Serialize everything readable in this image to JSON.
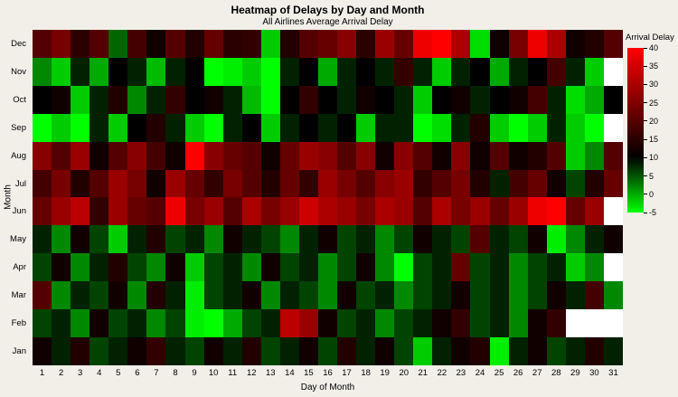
{
  "chart_data": {
    "type": "heatmap",
    "title": "Heatmap of Delays by Day and Month",
    "subtitle": "All Airlines Average Arrival Delay",
    "xlabel": "Day of Month",
    "ylabel": "Month",
    "x": [
      1,
      2,
      3,
      4,
      5,
      6,
      7,
      8,
      9,
      10,
      11,
      12,
      13,
      14,
      15,
      16,
      17,
      18,
      19,
      20,
      21,
      22,
      23,
      24,
      25,
      26,
      27,
      28,
      29,
      30,
      31
    ],
    "y": [
      "Dec",
      "Nov",
      "Oct",
      "Sep",
      "Aug",
      "Jul",
      "Jun",
      "May",
      "Apr",
      "Mar",
      "Feb",
      "Jan"
    ],
    "legend": {
      "title": "Arrival Delay",
      "ticks": [
        40,
        35,
        30,
        25,
        20,
        15,
        10,
        5,
        0,
        -5
      ],
      "min": -5,
      "max": 40,
      "midpoint": 10
    },
    "colors": {
      "low": "#00ff00",
      "mid": "#000000",
      "high": "#ff0000",
      "missing": "#ffffff",
      "background": "#f1efe8"
    },
    "values": [
      [
        20,
        24,
        15,
        20,
        4,
        18,
        12,
        20,
        14,
        22,
        15,
        16,
        -2,
        14,
        20,
        22,
        26,
        15,
        28,
        22,
        38,
        40,
        30,
        -3,
        12,
        24,
        38,
        30,
        12,
        14,
        20
      ],
      [
        2,
        -2,
        8,
        0,
        10,
        8,
        -1,
        8,
        10,
        -5,
        -4,
        -2,
        -5,
        8,
        10,
        0,
        8,
        10,
        8,
        16,
        8,
        -2,
        8,
        10,
        0,
        8,
        10,
        18,
        8,
        -2,
        null
      ],
      [
        10,
        12,
        -2,
        8,
        14,
        2,
        8,
        16,
        10,
        12,
        8,
        -1,
        -5,
        10,
        16,
        10,
        8,
        12,
        10,
        8,
        -2,
        10,
        12,
        8,
        10,
        12,
        18,
        8,
        -3,
        0,
        10
      ],
      [
        -5,
        -2,
        -5,
        8,
        -2,
        10,
        14,
        8,
        -2,
        -5,
        8,
        10,
        -2,
        8,
        10,
        8,
        10,
        -2,
        8,
        8,
        -5,
        -3,
        8,
        14,
        -2,
        -5,
        -2,
        8,
        -2,
        -5,
        null
      ],
      [
        26,
        20,
        28,
        12,
        20,
        26,
        18,
        12,
        40,
        26,
        22,
        20,
        12,
        22,
        28,
        26,
        20,
        26,
        12,
        26,
        20,
        12,
        26,
        12,
        20,
        12,
        14,
        20,
        -2,
        2,
        20
      ],
      [
        18,
        24,
        14,
        20,
        28,
        24,
        12,
        28,
        22,
        16,
        24,
        20,
        14,
        22,
        16,
        28,
        24,
        20,
        26,
        28,
        16,
        20,
        24,
        14,
        8,
        18,
        22,
        12,
        6,
        14,
        22
      ],
      [
        22,
        28,
        32,
        16,
        28,
        22,
        20,
        38,
        24,
        28,
        20,
        30,
        24,
        28,
        34,
        30,
        28,
        24,
        30,
        28,
        20,
        30,
        24,
        28,
        22,
        28,
        38,
        40,
        22,
        28,
        null
      ],
      [
        8,
        2,
        12,
        6,
        -2,
        8,
        14,
        6,
        8,
        2,
        12,
        8,
        6,
        2,
        8,
        12,
        6,
        8,
        2,
        6,
        12,
        8,
        6,
        20,
        8,
        6,
        12,
        -4,
        2,
        8,
        12
      ],
      [
        6,
        12,
        2,
        8,
        14,
        6,
        2,
        12,
        -2,
        6,
        8,
        2,
        12,
        6,
        8,
        2,
        6,
        12,
        2,
        -5,
        6,
        8,
        22,
        6,
        8,
        2,
        6,
        8,
        -2,
        2,
        null
      ],
      [
        20,
        2,
        8,
        6,
        12,
        2,
        14,
        8,
        -4,
        6,
        8,
        12,
        2,
        8,
        6,
        2,
        12,
        6,
        8,
        2,
        6,
        8,
        12,
        6,
        8,
        2,
        6,
        12,
        8,
        18,
        2
      ],
      [
        6,
        8,
        2,
        12,
        6,
        8,
        2,
        6,
        -4,
        -5,
        0,
        6,
        8,
        32,
        28,
        12,
        6,
        8,
        2,
        6,
        8,
        12,
        16,
        6,
        8,
        2,
        12,
        16,
        null,
        null,
        null
      ],
      [
        12,
        8,
        14,
        6,
        8,
        12,
        16,
        8,
        6,
        12,
        8,
        14,
        6,
        8,
        12,
        6,
        14,
        8,
        12,
        6,
        -2,
        8,
        12,
        14,
        -4,
        8,
        12,
        6,
        8,
        14,
        8
      ]
    ]
  }
}
